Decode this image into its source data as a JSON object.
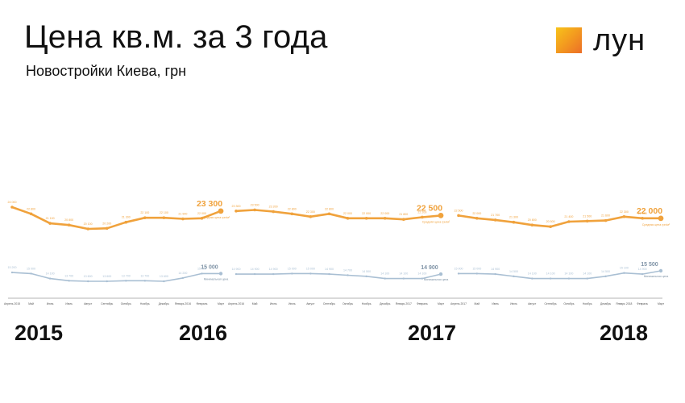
{
  "title": "Цена кв.м. за 3 года",
  "subtitle": "Новостройки Киева, грн",
  "logo": {
    "text": "лун",
    "icon": "lun-logo-square",
    "gradient": [
      "#f7c31a",
      "#ec6e28"
    ]
  },
  "colors": {
    "average": "#f0a23c",
    "minimum": "#a9bfd3",
    "axis": "#9a9a9a",
    "grid": "#dddddd"
  },
  "years": [
    "2015",
    "2016",
    "2017",
    "2018"
  ],
  "chart_data": {
    "type": "line",
    "x": [
      "Апрель 2015",
      "Май",
      "Июнь",
      "Июль",
      "Август",
      "Сентябрь",
      "Октябрь",
      "Ноябрь",
      "Декабрь",
      "Январь 2016",
      "Февраль",
      "Март",
      "Апрель 2016",
      "Май",
      "Июнь",
      "Июль",
      "Август",
      "Сентябрь",
      "Октябрь",
      "Ноябрь",
      "Декабрь",
      "Январь 2017",
      "Февраль",
      "Март",
      "Апрель 2017",
      "Май",
      "Июнь",
      "Июль",
      "Август",
      "Сентябрь",
      "Октябрь",
      "Ноябрь",
      "Декабрь",
      "Январь 2018",
      "Февраль",
      "Март"
    ],
    "series": [
      {
        "name": "Средняя цена грн/м²",
        "color": "#f0a23c",
        "values": [
          24000,
          22800,
          21100,
          20800,
          20100,
          20200,
          21300,
          22100,
          22100,
          21900,
          22000,
          23300,
          23300,
          23500,
          23200,
          22800,
          22300,
          22800,
          22000,
          22000,
          22000,
          21800,
          22200,
          22500,
          22500,
          22000,
          21700,
          21300,
          20800,
          20500,
          21400,
          21500,
          21600,
          22300,
          22000,
          22000
        ]
      },
      {
        "name": "Минимальная цена",
        "color": "#a9bfd3",
        "values": [
          15200,
          15000,
          14100,
          13700,
          13600,
          13600,
          13700,
          13700,
          13600,
          14200,
          15000,
          15000,
          14900,
          14900,
          14900,
          15000,
          15000,
          14900,
          14700,
          14500,
          14100,
          14100,
          14100,
          14900,
          15000,
          15000,
          14900,
          14500,
          14100,
          14100,
          14100,
          14100,
          14500,
          15100,
          14900,
          15500
        ]
      }
    ],
    "annotations": [
      {
        "index": 11,
        "series": 0,
        "text": "23 300"
      },
      {
        "index": 23,
        "series": 0,
        "text": "22 500"
      },
      {
        "index": 35,
        "series": 0,
        "text": "22 000"
      },
      {
        "index": 11,
        "series": 1,
        "text": "15 000"
      },
      {
        "index": 23,
        "series": 1,
        "text": "14 900"
      },
      {
        "index": 35,
        "series": 1,
        "text": "15 500"
      }
    ],
    "xlabel": "",
    "ylabel": "",
    "grid": false
  }
}
